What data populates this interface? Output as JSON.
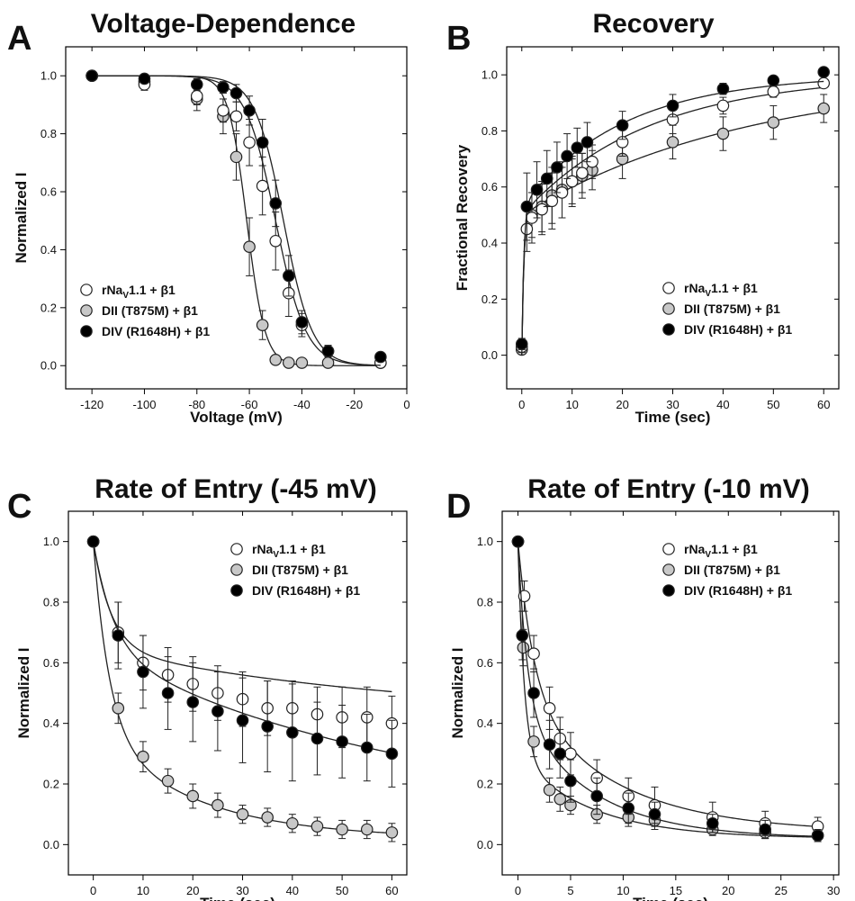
{
  "legend_labels": {
    "wt_prefix": "rNa",
    "wt_sub": "V",
    "wt_suffix": "1.1 + β1",
    "t875m": "DII (T875M) + β1",
    "r1648h": "DIV (R1648H) + β1"
  },
  "colors": {
    "wt": "#ffffff",
    "t875m": "#c8c8c8",
    "r1648h": "#000000",
    "marker_stroke": "#222222"
  },
  "chart_data": [
    {
      "letter": "A",
      "title": "Voltage-Dependence",
      "type": "scatter",
      "xlabel": "Voltage (mV)",
      "ylabel": "Normalized I",
      "xlim": [
        -130,
        0
      ],
      "ylim": [
        -0.08,
        1.1
      ],
      "xticks": [
        -120,
        -100,
        -80,
        -60,
        -40,
        -20,
        0
      ],
      "yticks": [
        0.0,
        0.2,
        0.4,
        0.6,
        0.8,
        1.0
      ],
      "x_tick_decimals": 0,
      "legend_position": "lower-left",
      "series": [
        {
          "name": "rNaV1.1 + β1",
          "key": "wt",
          "x": [
            -120,
            -100,
            -80,
            -70,
            -65,
            -60,
            -55,
            -50,
            -45,
            -40,
            -30,
            -10
          ],
          "y": [
            1.0,
            0.97,
            0.93,
            0.88,
            0.86,
            0.77,
            0.62,
            0.43,
            0.25,
            0.14,
            0.05,
            0.01
          ],
          "err": [
            0.0,
            0.02,
            0.03,
            0.04,
            0.05,
            0.08,
            0.1,
            0.1,
            0.08,
            0.04,
            0.02,
            0.01
          ],
          "fit": {
            "type": "boltzmann",
            "v_half": -50,
            "k": 5.8
          }
        },
        {
          "name": "DII (T875M) + β1",
          "key": "t875m",
          "x": [
            -120,
            -100,
            -80,
            -70,
            -65,
            -60,
            -55,
            -50,
            -45,
            -40,
            -30,
            -10
          ],
          "y": [
            1.0,
            0.98,
            0.92,
            0.86,
            0.72,
            0.41,
            0.14,
            0.02,
            0.01,
            0.01,
            0.01,
            0.01
          ],
          "err": [
            0.0,
            0.02,
            0.04,
            0.06,
            0.08,
            0.1,
            0.05,
            0.01,
            0.01,
            0.0,
            0.0,
            0.0
          ],
          "fit": {
            "type": "boltzmann",
            "v_half": -61,
            "k": 3.5
          }
        },
        {
          "name": "DIV (R1648H) + β1",
          "key": "r1648h",
          "x": [
            -120,
            -100,
            -80,
            -70,
            -65,
            -60,
            -55,
            -50,
            -45,
            -40,
            -30,
            -10
          ],
          "y": [
            1.0,
            0.99,
            0.97,
            0.96,
            0.94,
            0.88,
            0.77,
            0.56,
            0.31,
            0.15,
            0.05,
            0.03
          ],
          "err": [
            0.0,
            0.01,
            0.02,
            0.02,
            0.03,
            0.05,
            0.08,
            0.08,
            0.07,
            0.04,
            0.02,
            0.01
          ],
          "fit": {
            "type": "boltzmann",
            "v_half": -47,
            "k": 5.5
          }
        }
      ]
    },
    {
      "letter": "B",
      "title": "Recovery",
      "type": "scatter",
      "xlabel": "Time (sec)",
      "ylabel": "Fractional Recovery",
      "xlim": [
        -3,
        63
      ],
      "ylim": [
        -0.12,
        1.1
      ],
      "xticks": [
        0,
        10,
        20,
        30,
        40,
        50,
        60
      ],
      "yticks": [
        0.0,
        0.2,
        0.4,
        0.6,
        0.8,
        1.0
      ],
      "x_tick_decimals": 0,
      "legend_position": "lower-right",
      "series": [
        {
          "name": "rNaV1.1 + β1",
          "key": "wt",
          "x": [
            0,
            1,
            2,
            4,
            6,
            8,
            10,
            12,
            14,
            20,
            30,
            40,
            50,
            60
          ],
          "y": [
            0.03,
            0.45,
            0.49,
            0.52,
            0.55,
            0.58,
            0.62,
            0.65,
            0.69,
            0.76,
            0.84,
            0.89,
            0.94,
            0.97
          ],
          "err": [
            0.02,
            0.08,
            0.09,
            0.09,
            0.1,
            0.09,
            0.08,
            0.07,
            0.06,
            0.05,
            0.05,
            0.03,
            0.02,
            0.01
          ],
          "fit": {
            "type": "recovery",
            "a1": 0.5,
            "tau1": 0.4,
            "tau2": 25,
            "c": 0.0
          }
        },
        {
          "name": "DII (T875M) + β1",
          "key": "t875m",
          "x": [
            0,
            2,
            4,
            6,
            8,
            10,
            12,
            14,
            20,
            30,
            40,
            50,
            60
          ],
          "y": [
            0.02,
            0.5,
            0.53,
            0.57,
            0.59,
            0.62,
            0.64,
            0.66,
            0.7,
            0.76,
            0.79,
            0.83,
            0.88
          ],
          "err": [
            0.01,
            0.08,
            0.09,
            0.1,
            0.1,
            0.09,
            0.08,
            0.07,
            0.07,
            0.06,
            0.06,
            0.06,
            0.05
          ],
          "fit": {
            "type": "recovery",
            "a1": 0.5,
            "tau1": 0.4,
            "tau2": 45,
            "c": 0.0
          }
        },
        {
          "name": "DIV (R1648H) + β1",
          "key": "r1648h",
          "x": [
            0,
            1,
            3,
            5,
            7,
            9,
            11,
            13,
            20,
            30,
            40,
            50,
            60
          ],
          "y": [
            0.04,
            0.53,
            0.59,
            0.63,
            0.67,
            0.71,
            0.74,
            0.76,
            0.82,
            0.89,
            0.95,
            0.98,
            1.01
          ],
          "err": [
            0.02,
            0.12,
            0.1,
            0.1,
            0.09,
            0.08,
            0.07,
            0.07,
            0.05,
            0.04,
            0.02,
            0.01,
            0.01
          ],
          "fit": {
            "type": "recovery",
            "a1": 0.53,
            "tau1": 0.4,
            "tau2": 20,
            "c": 0.0
          }
        }
      ]
    },
    {
      "letter": "C",
      "title": "Rate of Entry (-45 mV)",
      "type": "scatter",
      "xlabel": "Time (sec)",
      "ylabel": "Normalized I",
      "xlim": [
        -5,
        63
      ],
      "ylim": [
        -0.1,
        1.1
      ],
      "xticks": [
        0,
        10,
        20,
        30,
        40,
        50,
        60
      ],
      "yticks": [
        0.0,
        0.2,
        0.4,
        0.6,
        0.8,
        1.0
      ],
      "x_tick_decimals": 0,
      "legend_position": "upper-right",
      "series": [
        {
          "name": "rNaV1.1 + β1",
          "key": "wt",
          "x": [
            0,
            5,
            10,
            15,
            20,
            25,
            30,
            35,
            40,
            45,
            50,
            55,
            60
          ],
          "y": [
            1.0,
            0.7,
            0.6,
            0.56,
            0.53,
            0.5,
            0.48,
            0.45,
            0.45,
            0.43,
            0.42,
            0.42,
            0.4
          ],
          "err": [
            0.0,
            0.1,
            0.09,
            0.09,
            0.09,
            0.09,
            0.09,
            0.09,
            0.09,
            0.09,
            0.1,
            0.1,
            0.09
          ],
          "fit": {
            "type": "biexp",
            "a1": 0.35,
            "tau1": 3.5,
            "a2": 0.23,
            "tau2": 60,
            "c": 0.42
          }
        },
        {
          "name": "DII (T875M) + β1",
          "key": "t875m",
          "x": [
            0,
            5,
            10,
            15,
            20,
            25,
            30,
            35,
            40,
            45,
            50,
            55,
            60
          ],
          "y": [
            1.0,
            0.45,
            0.29,
            0.21,
            0.16,
            0.13,
            0.1,
            0.09,
            0.07,
            0.06,
            0.05,
            0.05,
            0.04
          ],
          "err": [
            0.0,
            0.05,
            0.05,
            0.04,
            0.04,
            0.04,
            0.03,
            0.03,
            0.03,
            0.03,
            0.03,
            0.03,
            0.03
          ],
          "fit": {
            "type": "biexp",
            "a1": 0.62,
            "tau1": 3.2,
            "a2": 0.36,
            "tau2": 20,
            "c": 0.02
          }
        },
        {
          "name": "DIV (R1648H) + β1",
          "key": "r1648h",
          "x": [
            0,
            5,
            10,
            15,
            20,
            25,
            30,
            35,
            40,
            45,
            50,
            55,
            60
          ],
          "y": [
            1.0,
            0.69,
            0.57,
            0.5,
            0.47,
            0.44,
            0.41,
            0.39,
            0.37,
            0.35,
            0.34,
            0.32,
            0.3
          ],
          "err": [
            0.0,
            0.11,
            0.12,
            0.12,
            0.13,
            0.13,
            0.14,
            0.15,
            0.16,
            0.12,
            0.12,
            0.11,
            0.11
          ],
          "fit": {
            "type": "biexp",
            "a1": 0.35,
            "tau1": 4.0,
            "a2": 0.55,
            "tau2": 60,
            "c": 0.1
          }
        }
      ]
    },
    {
      "letter": "D",
      "title": "Rate of Entry (-10 mV)",
      "type": "scatter",
      "xlabel": "Time (sec)",
      "ylabel": "Normalized I",
      "xlim": [
        -1.5,
        30.5
      ],
      "ylim": [
        -0.1,
        1.1
      ],
      "xticks": [
        0,
        5,
        10,
        15,
        20,
        25,
        30
      ],
      "yticks": [
        0.0,
        0.2,
        0.4,
        0.6,
        0.8,
        1.0
      ],
      "x_tick_decimals": 0,
      "legend_position": "upper-right",
      "series": [
        {
          "name": "rNaV1.1 + β1",
          "key": "wt",
          "x": [
            0,
            0.6,
            1.5,
            3,
            4,
            5,
            7.5,
            10.5,
            13,
            18.5,
            23.5,
            28.5
          ],
          "y": [
            1.0,
            0.82,
            0.63,
            0.45,
            0.35,
            0.3,
            0.22,
            0.16,
            0.13,
            0.09,
            0.07,
            0.06
          ],
          "err": [
            0.0,
            0.05,
            0.06,
            0.07,
            0.07,
            0.07,
            0.06,
            0.06,
            0.06,
            0.05,
            0.04,
            0.03
          ],
          "fit": {
            "type": "biexp",
            "a1": 0.5,
            "tau1": 1.5,
            "a2": 0.46,
            "tau2": 9,
            "c": 0.04
          }
        },
        {
          "name": "DII (T875M) + β1",
          "key": "t875m",
          "x": [
            0,
            0.5,
            1.5,
            3,
            4,
            5,
            7.5,
            10.5,
            13,
            18.5,
            23.5,
            28.5
          ],
          "y": [
            1.0,
            0.65,
            0.34,
            0.18,
            0.15,
            0.13,
            0.1,
            0.09,
            0.08,
            0.05,
            0.04,
            0.03
          ],
          "err": [
            0.0,
            0.06,
            0.05,
            0.04,
            0.04,
            0.03,
            0.03,
            0.03,
            0.03,
            0.02,
            0.02,
            0.02
          ],
          "fit": {
            "type": "biexp",
            "a1": 0.7,
            "tau1": 0.6,
            "a2": 0.27,
            "tau2": 7,
            "c": 0.02
          }
        },
        {
          "name": "DIV (R1648H) + β1",
          "key": "r1648h",
          "x": [
            0,
            0.4,
            1.5,
            3,
            4,
            5,
            7.5,
            10.5,
            13,
            18.5,
            23.5,
            28.5
          ],
          "y": [
            1.0,
            0.69,
            0.5,
            0.33,
            0.3,
            0.21,
            0.16,
            0.12,
            0.1,
            0.07,
            0.05,
            0.03
          ],
          "err": [
            0.0,
            0.08,
            0.08,
            0.08,
            0.08,
            0.07,
            0.06,
            0.05,
            0.04,
            0.03,
            0.03,
            0.02
          ],
          "fit": {
            "type": "biexp",
            "a1": 0.55,
            "tau1": 0.9,
            "a2": 0.42,
            "tau2": 7,
            "c": 0.02
          }
        }
      ]
    }
  ]
}
